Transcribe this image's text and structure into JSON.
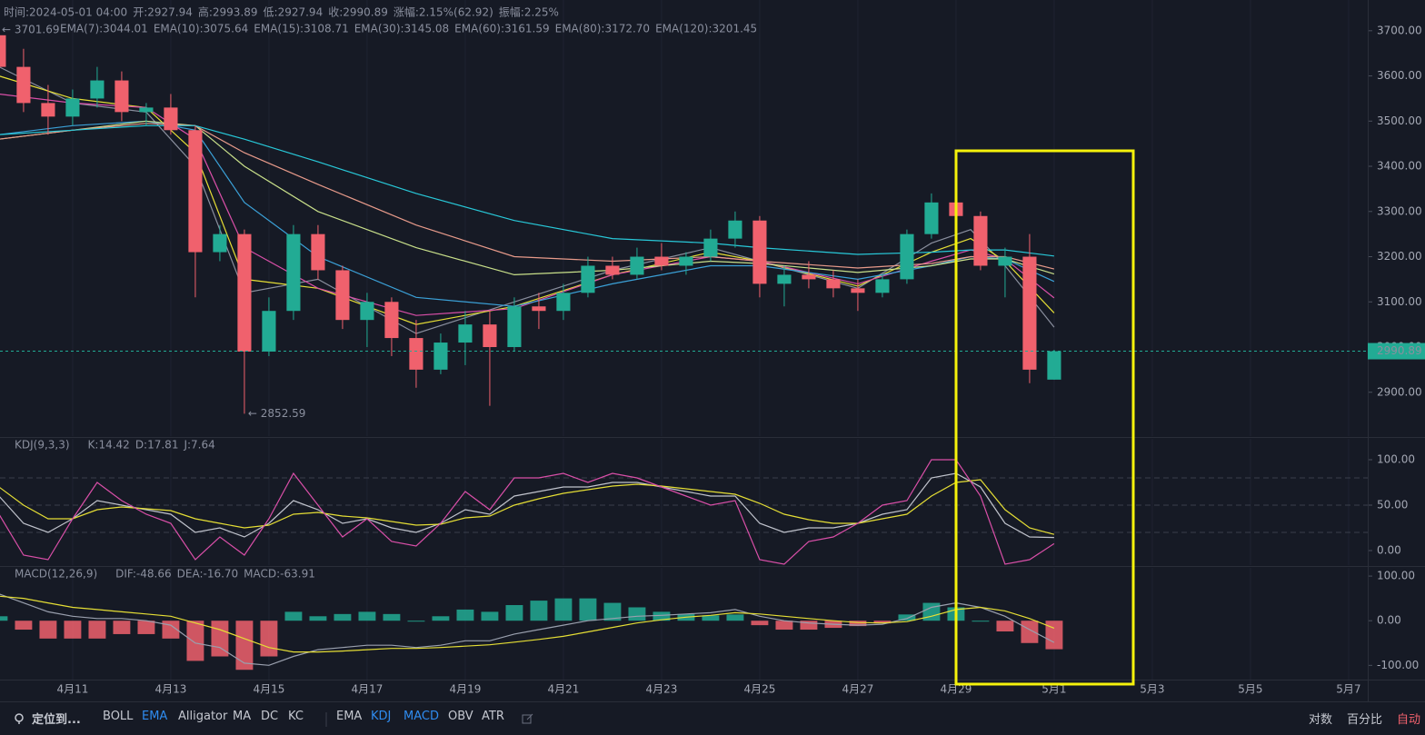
{
  "chart_data": [
    {
      "type": "candlestick",
      "info": [
        [
          "时间:",
          "2024-05-01 04:00"
        ],
        [
          "开:",
          "2927.94"
        ],
        [
          "高:",
          "2993.89"
        ],
        [
          "低:",
          "2927.94"
        ],
        [
          "收:",
          "2990.89"
        ],
        [
          "涨幅:",
          "2.15%(62.92)"
        ],
        [
          "振幅:",
          "2.25%"
        ]
      ],
      "x": [
        9.5,
        10,
        10.5,
        11,
        11.5,
        12,
        12.5,
        13,
        13.5,
        14,
        14.5,
        15,
        15.5,
        16,
        16.5,
        17,
        17.5,
        18,
        18.5,
        19,
        19.5,
        20,
        20.5,
        21,
        21.5,
        22,
        22.5,
        23,
        23.5,
        24,
        24.5,
        25,
        25.5,
        26,
        26.5,
        27,
        27.5,
        28,
        28.5,
        29,
        29.5,
        30,
        30.5,
        31
      ],
      "open": [
        3690,
        3620,
        3540,
        3510,
        3550,
        3590,
        3520,
        3530,
        3480,
        3210,
        3250,
        2990,
        3080,
        3250,
        3170,
        3060,
        3100,
        3020,
        2950,
        3010,
        3050,
        3000,
        3090,
        3080,
        3120,
        3180,
        3160,
        3200,
        3180,
        3200,
        3240,
        3280,
        3140,
        3160,
        3150,
        3130,
        3120,
        3150,
        3250,
        3320,
        3290,
        3180,
        3200,
        2927.94
      ],
      "high": [
        3701.69,
        3660,
        3580,
        3570,
        3620,
        3610,
        3540,
        3560,
        3490,
        3270,
        3260,
        3110,
        3270,
        3270,
        3180,
        3120,
        3110,
        3060,
        3030,
        3080,
        3080,
        3110,
        3120,
        3140,
        3200,
        3200,
        3220,
        3230,
        3210,
        3260,
        3300,
        3290,
        3180,
        3190,
        3170,
        3150,
        3160,
        3260,
        3340,
        3340,
        3300,
        3220,
        3250,
        2993.89
      ],
      "low": [
        3600,
        3520,
        3470,
        3490,
        3530,
        3500,
        3490,
        3470,
        3110,
        3190,
        2852.59,
        2980,
        3060,
        3150,
        3040,
        3000,
        2980,
        2910,
        2940,
        2960,
        2870,
        2990,
        3040,
        3060,
        3110,
        3150,
        3150,
        3170,
        3160,
        3190,
        3220,
        3110,
        3090,
        3130,
        3110,
        3080,
        3110,
        3140,
        3240,
        3280,
        3170,
        3110,
        2920,
        2927.94
      ],
      "close": [
        3620,
        3540,
        3510,
        3550,
        3590,
        3520,
        3530,
        3480,
        3210,
        3250,
        2990,
        3080,
        3250,
        3170,
        3060,
        3100,
        3020,
        2950,
        3010,
        3050,
        3000,
        3090,
        3080,
        3120,
        3180,
        3160,
        3200,
        3180,
        3200,
        3240,
        3280,
        3140,
        3160,
        3150,
        3130,
        3120,
        3150,
        3250,
        3320,
        3290,
        3180,
        3200,
        2950,
        2990.89
      ],
      "up_color": "#22ab94",
      "down_color": "#f0616d",
      "series": [
        {
          "name": "EMA(7):3044.01",
          "color": "#8a8f9e",
          "x": [
            9.5,
            11,
            12.5,
            13.5,
            14.5,
            16,
            18,
            20,
            22,
            24,
            25,
            27,
            28.5,
            29.3,
            30,
            31
          ],
          "values": [
            3620,
            3540,
            3520,
            3400,
            3120,
            3150,
            3030,
            3100,
            3170,
            3220,
            3190,
            3130,
            3230,
            3260,
            3180,
            3044.01
          ]
        },
        {
          "name": "EMA(10):3075.64",
          "color": "#e5de35",
          "x": [
            9.5,
            11,
            12.5,
            13.5,
            14.5,
            16,
            18,
            20,
            22,
            24,
            25,
            27,
            28.5,
            29.3,
            30,
            31
          ],
          "values": [
            3600,
            3550,
            3530,
            3430,
            3150,
            3130,
            3050,
            3090,
            3160,
            3210,
            3190,
            3135,
            3210,
            3240,
            3190,
            3075.64
          ]
        },
        {
          "name": "EMA(15):3108.71",
          "color": "#d94fa8",
          "x": [
            9.5,
            11,
            12.5,
            13.5,
            14.5,
            16,
            18,
            20,
            22,
            24,
            25,
            27,
            28.5,
            29.3,
            30,
            31
          ],
          "values": [
            3560,
            3540,
            3530,
            3460,
            3220,
            3130,
            3070,
            3085,
            3160,
            3200,
            3190,
            3140,
            3190,
            3215,
            3195,
            3108.71
          ]
        },
        {
          "name": "EMA(30):3145.08",
          "color": "#3ba1d8",
          "x": [
            9.5,
            11,
            12.5,
            13.5,
            14.5,
            16,
            18,
            20,
            22,
            24,
            25,
            27,
            28.5,
            29.3,
            30,
            31
          ],
          "values": [
            3470,
            3490,
            3500,
            3480,
            3320,
            3200,
            3110,
            3090,
            3140,
            3180,
            3180,
            3150,
            3180,
            3200,
            3195,
            3145.08
          ]
        },
        {
          "name": "EMA(60):3161.59",
          "color": "#c9e08a",
          "x": [
            9.5,
            11,
            12.5,
            13.5,
            14.5,
            16,
            18,
            20,
            22,
            24,
            25,
            27,
            28.5,
            29.3,
            30,
            31
          ],
          "values": [
            3460,
            3480,
            3500,
            3490,
            3400,
            3300,
            3220,
            3160,
            3170,
            3190,
            3185,
            3165,
            3180,
            3195,
            3195,
            3161.59
          ]
        },
        {
          "name": "EMA(80):3172.70",
          "color": "#e79a8a",
          "x": [
            9.5,
            11,
            12.5,
            13.5,
            14.5,
            16,
            18,
            20,
            22,
            24,
            25,
            27,
            28.5,
            29.3,
            30,
            31
          ],
          "values": [
            3460,
            3480,
            3495,
            3490,
            3430,
            3360,
            3270,
            3200,
            3190,
            3200,
            3190,
            3175,
            3185,
            3200,
            3200,
            3172.7
          ]
        },
        {
          "name": "EMA(120):3201.45",
          "color": "#28c8d8",
          "x": [
            9.5,
            11,
            12.5,
            13.5,
            14.5,
            16,
            18,
            20,
            22,
            24,
            25,
            27,
            28.5,
            29.3,
            30,
            31
          ],
          "values": [
            3470,
            3480,
            3490,
            3490,
            3460,
            3410,
            3340,
            3280,
            3240,
            3230,
            3220,
            3205,
            3210,
            3215,
            3215,
            3201.45
          ]
        }
      ],
      "annotations": [
        {
          "x": 9.5,
          "y": 3701.69,
          "label": "← 3701.69"
        },
        {
          "x": 14.5,
          "y": 2852.59,
          "label": "← 2852.59"
        }
      ],
      "last_price": {
        "value": 2990.89,
        "label": "2990.89"
      },
      "xlim": [
        9.52,
        37.39
      ],
      "ylim": [
        2803,
        3768
      ],
      "yticks": [
        {
          "value": 2900,
          "label": "2900.00"
        },
        {
          "value": 3000,
          "label": "3000.00"
        },
        {
          "value": 3100,
          "label": "3100.00"
        },
        {
          "value": 3200,
          "label": "3200.00"
        },
        {
          "value": 3300,
          "label": "3300.00"
        },
        {
          "value": 3400,
          "label": "3400.00"
        },
        {
          "value": 3500,
          "label": "3500.00"
        },
        {
          "value": 3600,
          "label": "3600.00"
        },
        {
          "value": 3700,
          "label": "3700.00"
        }
      ]
    },
    {
      "type": "line",
      "title": "KDJ(9,3,3)",
      "series": [
        {
          "name": "K:14.42",
          "color": "#c0c3cc",
          "values": [
            60,
            30,
            20,
            35,
            55,
            50,
            45,
            40,
            20,
            25,
            15,
            30,
            55,
            45,
            30,
            35,
            25,
            20,
            30,
            45,
            40,
            60,
            65,
            70,
            70,
            75,
            75,
            70,
            65,
            60,
            60,
            30,
            20,
            25,
            25,
            30,
            40,
            45,
            80,
            85,
            70,
            30,
            15,
            14.42
          ]
        },
        {
          "name": "D:17.81",
          "color": "#e5de35",
          "values": [
            70,
            50,
            35,
            35,
            45,
            48,
            46,
            44,
            35,
            30,
            25,
            28,
            40,
            42,
            38,
            36,
            32,
            28,
            29,
            36,
            38,
            50,
            57,
            63,
            67,
            71,
            73,
            71,
            68,
            65,
            62,
            52,
            40,
            34,
            30,
            30,
            35,
            40,
            60,
            75,
            78,
            45,
            25,
            17.81
          ]
        },
        {
          "name": "J:7.64",
          "color": "#d94fa8",
          "values": [
            40,
            -5,
            -10,
            35,
            75,
            55,
            40,
            30,
            -10,
            15,
            -5,
            35,
            85,
            50,
            15,
            35,
            10,
            5,
            30,
            65,
            45,
            80,
            80,
            85,
            75,
            85,
            80,
            70,
            60,
            50,
            55,
            -10,
            -15,
            10,
            15,
            30,
            50,
            55,
            100,
            100,
            60,
            -15,
            -10,
            7.64
          ]
        }
      ],
      "levels": [
        20,
        50,
        80
      ],
      "xlim": [
        9.52,
        37.39
      ],
      "ylim": [
        -16,
        123
      ],
      "yticks": [
        {
          "value": 0,
          "label": "0.00"
        },
        {
          "value": 50,
          "label": "50.00"
        },
        {
          "value": 100,
          "label": "100.00"
        }
      ]
    },
    {
      "type": "macd",
      "title": "MACD(12,26,9)",
      "series": [
        {
          "name": "DIF:-48.66",
          "type": "line",
          "color": "#9aa0ae",
          "values": [
            60,
            40,
            20,
            10,
            5,
            5,
            0,
            -10,
            -50,
            -60,
            -95,
            -100,
            -80,
            -65,
            -60,
            -55,
            -55,
            -60,
            -55,
            -45,
            -45,
            -30,
            -20,
            -10,
            0,
            5,
            10,
            12,
            15,
            18,
            25,
            10,
            0,
            -5,
            -8,
            -10,
            -8,
            5,
            30,
            40,
            30,
            10,
            -20,
            -48.66
          ]
        },
        {
          "name": "DEA:-16.70",
          "type": "line",
          "color": "#e5de35",
          "values": [
            55,
            50,
            40,
            30,
            25,
            20,
            15,
            10,
            -5,
            -20,
            -40,
            -60,
            -70,
            -70,
            -68,
            -65,
            -62,
            -62,
            -60,
            -57,
            -54,
            -48,
            -42,
            -35,
            -25,
            -15,
            -5,
            2,
            8,
            12,
            18,
            15,
            10,
            5,
            0,
            -4,
            -5,
            -2,
            10,
            25,
            30,
            22,
            5,
            -16.7
          ]
        },
        {
          "name": "MACD:-63.91",
          "type": "bar",
          "color": "#f0616d",
          "up_color": "#22ab94",
          "down_color": "#f0616d",
          "values": [
            10,
            -20,
            -40,
            -40,
            -40,
            -30,
            -30,
            -40,
            -90,
            -80,
            -110,
            -80,
            20,
            10,
            15,
            20,
            15,
            0,
            10,
            25,
            20,
            35,
            45,
            50,
            50,
            40,
            30,
            20,
            15,
            12,
            14,
            -10,
            -20,
            -20,
            -16,
            -12,
            -6,
            14,
            40,
            30,
            0,
            -24,
            -50,
            -63.91
          ]
        }
      ],
      "xlim": [
        9.52,
        37.39
      ],
      "ylim": [
        -131.9,
        118.5
      ],
      "yticks": [
        {
          "value": -100,
          "label": "-100.00"
        },
        {
          "value": 0,
          "label": "0.00"
        },
        {
          "value": 100,
          "label": "100.00"
        }
      ],
      "xticks": [
        {
          "value": 11,
          "label": "4月11"
        },
        {
          "value": 13,
          "label": "4月13"
        },
        {
          "value": 15,
          "label": "4月15"
        },
        {
          "value": 17,
          "label": "4月17"
        },
        {
          "value": 19,
          "label": "4月19"
        },
        {
          "value": 21,
          "label": "4月21"
        },
        {
          "value": 23,
          "label": "4月23"
        },
        {
          "value": 25,
          "label": "4月25"
        },
        {
          "value": 27,
          "label": "4月27"
        },
        {
          "value": 29,
          "label": "4月29"
        },
        {
          "value": 31,
          "label": "5月1"
        },
        {
          "value": 33,
          "label": "5月3"
        },
        {
          "value": 35,
          "label": "5月5"
        },
        {
          "value": 37,
          "label": "5月7"
        }
      ]
    }
  ],
  "toolbar": {
    "left": [
      {
        "label": "定位到...",
        "active": false
      },
      {
        "label": "BOLL",
        "active": false
      },
      {
        "label": "EMA",
        "active": true
      },
      {
        "label": "Alligator",
        "active": false
      },
      {
        "label": "MA",
        "active": false
      },
      {
        "label": "DC",
        "active": false
      },
      {
        "label": "KC",
        "active": false
      },
      {
        "label": "EMA",
        "active": false
      },
      {
        "label": "KDJ",
        "active": true
      },
      {
        "label": "MACD",
        "active": true
      },
      {
        "label": "OBV",
        "active": false
      },
      {
        "label": "ATR",
        "active": false
      }
    ],
    "right": [
      {
        "label": "对数",
        "active": false
      },
      {
        "label": "百分比",
        "active": false
      },
      {
        "label": "自动",
        "active": true
      }
    ]
  }
}
